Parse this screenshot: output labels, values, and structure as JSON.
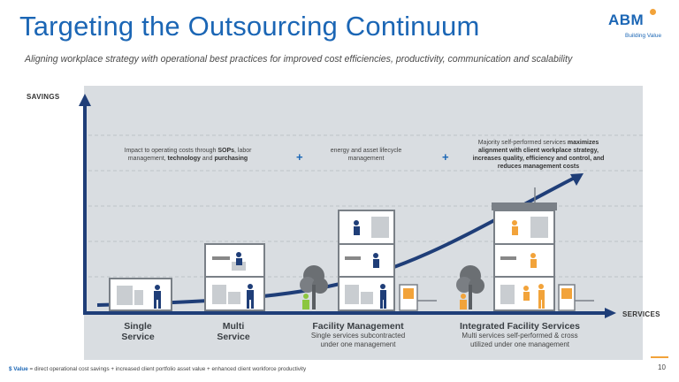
{
  "header": {
    "title": "Targeting the Outsourcing Continuum",
    "subtitle": "Aligning workplace strategy with operational best practices for improved cost efficiencies, productivity, communication and scalability",
    "logo_text": "ABM",
    "logo_tagline": "Building Value",
    "brand_color": "#1b66b5",
    "accent_color": "#f2a33a"
  },
  "axes": {
    "y_label": "SAVINGS",
    "x_label": "SERVICES"
  },
  "notes": {
    "note1_pre": "Impact to operating costs through ",
    "note1_sops": "SOPs",
    "note1_mid": ", labor management, ",
    "note1_tech": "technology",
    "note1_and": " and ",
    "note1_purch": "purchasing",
    "plus1": "+",
    "note2": "energy and asset lifecycle management",
    "plus2": "+",
    "note3_pre": "Majority self-performed services ",
    "note3_bold": "maximizes alignment with client workplace strategy, increases quality, efficiency and control,",
    "note3_post": " and reduces management costs"
  },
  "stages": [
    {
      "title": "Single Service",
      "line1": "Single",
      "line2": "Service",
      "sub": ""
    },
    {
      "title": "Multi Service",
      "line1": "Multi",
      "line2": "Service",
      "sub": ""
    },
    {
      "title": "Facility Management",
      "sub1": "Single services subcontracted",
      "sub2": "under one management"
    },
    {
      "title": "Integrated Facility Services",
      "sub1": "Multi services self-performed & cross",
      "sub2": "utilized under one management"
    }
  ],
  "footer": {
    "bold": "$ Value",
    "text": " = direct operational cost savings + increased client portfolio asset value + enhanced client workforce productivity"
  },
  "page_number": "10"
}
